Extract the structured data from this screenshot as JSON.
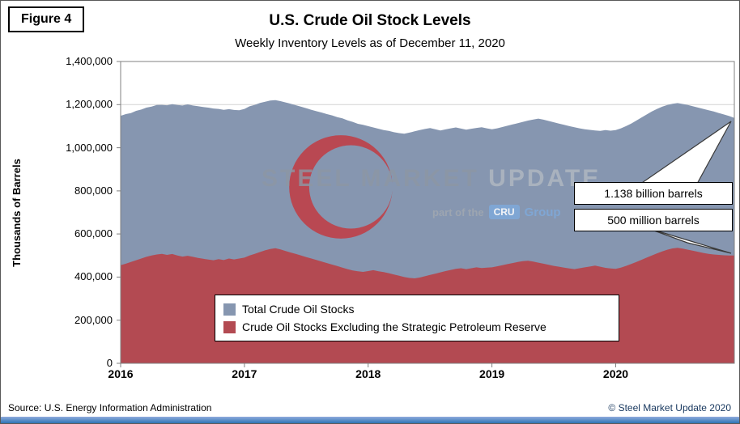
{
  "figure_label": "Figure 4",
  "title": "U.S. Crude Oil Stock Levels",
  "subtitle": "Weekly Inventory Levels as of December 11, 2020",
  "y_axis_title": "Thousands of Barrels",
  "source": "Source: U.S. Energy Information Administration",
  "copyright": "© Steel Market Update 2020",
  "watermark": {
    "word1": "STEEL",
    "word2": "MARKET",
    "word3": "UPDATE",
    "sub_prefix": "part of the",
    "sub_box": "CRU",
    "sub_suffix": "Group",
    "crescent_color": "#c23b42"
  },
  "callouts": [
    {
      "label": "1.138 billion barrels",
      "series": "Total Crude Oil Stocks",
      "value": 1138000
    },
    {
      "label": "500 million barrels",
      "series": "Crude Oil Stocks Excluding the Strategic Petroleum Reserve",
      "value": 500000
    }
  ],
  "legend": [
    {
      "label": "Total Crude Oil Stocks",
      "color": "#8696b0"
    },
    {
      "label": "Crude Oil Stocks Excluding the Strategic Petroleum Reserve",
      "color": "#b34a52"
    }
  ],
  "chart_data": {
    "type": "area",
    "title": "U.S. Crude Oil Stock Levels",
    "subtitle": "Weekly Inventory Levels as of December 11, 2020",
    "ylabel": "Thousands of Barrels",
    "unit": "thousand barrels",
    "ylim": [
      0,
      1400000
    ],
    "ytick_step": 200000,
    "y_tick_labels": [
      "0",
      "200,000",
      "400,000",
      "600,000",
      "800,000",
      "1,000,000",
      "1,200,000",
      "1,400,000"
    ],
    "x_tick_labels": [
      "2016",
      "2017",
      "2018",
      "2019",
      "2020"
    ],
    "points_per_year": 24,
    "grid": true,
    "legend_position": "inside-bottom-center",
    "series": [
      {
        "name": "Total Crude Oil Stocks",
        "color": "#8696b0",
        "values": [
          1148000,
          1156000,
          1161000,
          1171000,
          1177000,
          1186000,
          1191000,
          1198000,
          1199000,
          1197000,
          1202000,
          1198000,
          1196000,
          1201000,
          1196000,
          1193000,
          1189000,
          1186000,
          1182000,
          1180000,
          1176000,
          1179000,
          1175000,
          1174000,
          1180000,
          1192000,
          1199000,
          1208000,
          1213000,
          1219000,
          1221000,
          1216000,
          1210000,
          1204000,
          1197000,
          1190000,
          1183000,
          1176000,
          1169000,
          1163000,
          1156000,
          1150000,
          1142000,
          1136000,
          1127000,
          1120000,
          1111000,
          1106000,
          1100000,
          1094000,
          1088000,
          1082000,
          1078000,
          1072000,
          1068000,
          1065000,
          1070000,
          1076000,
          1082000,
          1087000,
          1091000,
          1086000,
          1080000,
          1085000,
          1090000,
          1094000,
          1089000,
          1084000,
          1088000,
          1092000,
          1095000,
          1090000,
          1086000,
          1090000,
          1096000,
          1102000,
          1108000,
          1114000,
          1120000,
          1126000,
          1131000,
          1135000,
          1130000,
          1124000,
          1118000,
          1112000,
          1106000,
          1100000,
          1095000,
          1090000,
          1086000,
          1083000,
          1080000,
          1078000,
          1082000,
          1079000,
          1082000,
          1090000,
          1100000,
          1112000,
          1126000,
          1140000,
          1154000,
          1168000,
          1180000,
          1190000,
          1198000,
          1204000,
          1207000,
          1203000,
          1198000,
          1192000,
          1186000,
          1180000,
          1174000,
          1168000,
          1161000,
          1154000,
          1147000,
          1138000
        ]
      },
      {
        "name": "Crude Oil Stocks Excluding the Strategic Petroleum Reserve",
        "color": "#b34a52",
        "values": [
          455000,
          462000,
          470000,
          478000,
          486000,
          494000,
          500000,
          505000,
          508000,
          503000,
          507000,
          500000,
          495000,
          499000,
          494000,
          489000,
          485000,
          481000,
          478000,
          483000,
          479000,
          486000,
          482000,
          486000,
          490000,
          500000,
          508000,
          516000,
          524000,
          530000,
          534000,
          528000,
          521000,
          514000,
          507000,
          500000,
          493000,
          486000,
          479000,
          472000,
          465000,
          458000,
          451000,
          444000,
          437000,
          431000,
          427000,
          424000,
          428000,
          432000,
          427000,
          423000,
          418000,
          412000,
          406000,
          400000,
          396000,
          394000,
          398000,
          404000,
          410000,
          416000,
          422000,
          428000,
          433000,
          438000,
          441000,
          437000,
          441000,
          445000,
          442000,
          444000,
          445000,
          450000,
          455000,
          460000,
          465000,
          470000,
          474000,
          476000,
          472000,
          467000,
          462000,
          457000,
          452000,
          448000,
          444000,
          440000,
          437000,
          441000,
          445000,
          449000,
          453000,
          448000,
          443000,
          440000,
          438000,
          444000,
          452000,
          461000,
          470000,
          480000,
          490000,
          500000,
          510000,
          519000,
          527000,
          533000,
          536000,
          532000,
          527000,
          522000,
          517000,
          512000,
          508000,
          505000,
          503000,
          501000,
          500000,
          500000
        ]
      }
    ]
  }
}
